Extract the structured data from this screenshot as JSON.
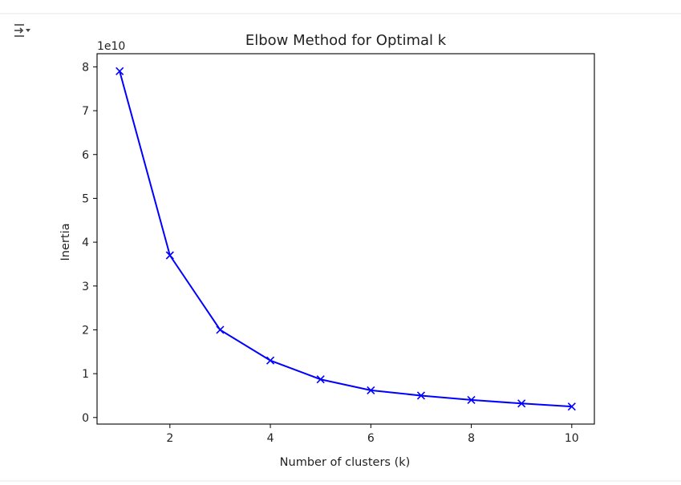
{
  "output_toggle": {
    "icon": "collapse-output-icon"
  },
  "chart_data": {
    "type": "line",
    "title": "Elbow Method for Optimal k",
    "xlabel": "Number of clusters (k)",
    "ylabel": "Inertia",
    "y_offset_label": "1e10",
    "x": [
      1,
      2,
      3,
      4,
      5,
      6,
      7,
      8,
      9,
      10
    ],
    "series": [
      {
        "values": [
          7.9,
          3.7,
          2.0,
          1.3,
          0.87,
          0.62,
          0.5,
          0.4,
          0.32,
          0.25
        ],
        "color": "#0000ff",
        "marker": "x"
      }
    ],
    "xlim": [
      0.55,
      10.45
    ],
    "ylim": [
      -0.15,
      8.3
    ],
    "xticks": [
      2,
      4,
      6,
      8,
      10
    ],
    "xtick_labels": [
      "2",
      "4",
      "6",
      "8",
      "10"
    ],
    "yticks": [
      0,
      1,
      2,
      3,
      4,
      5,
      6,
      7,
      8
    ],
    "ytick_labels": [
      "0",
      "1",
      "2",
      "3",
      "4",
      "5",
      "6",
      "7",
      "8"
    ],
    "grid": false,
    "scale": "linear"
  }
}
